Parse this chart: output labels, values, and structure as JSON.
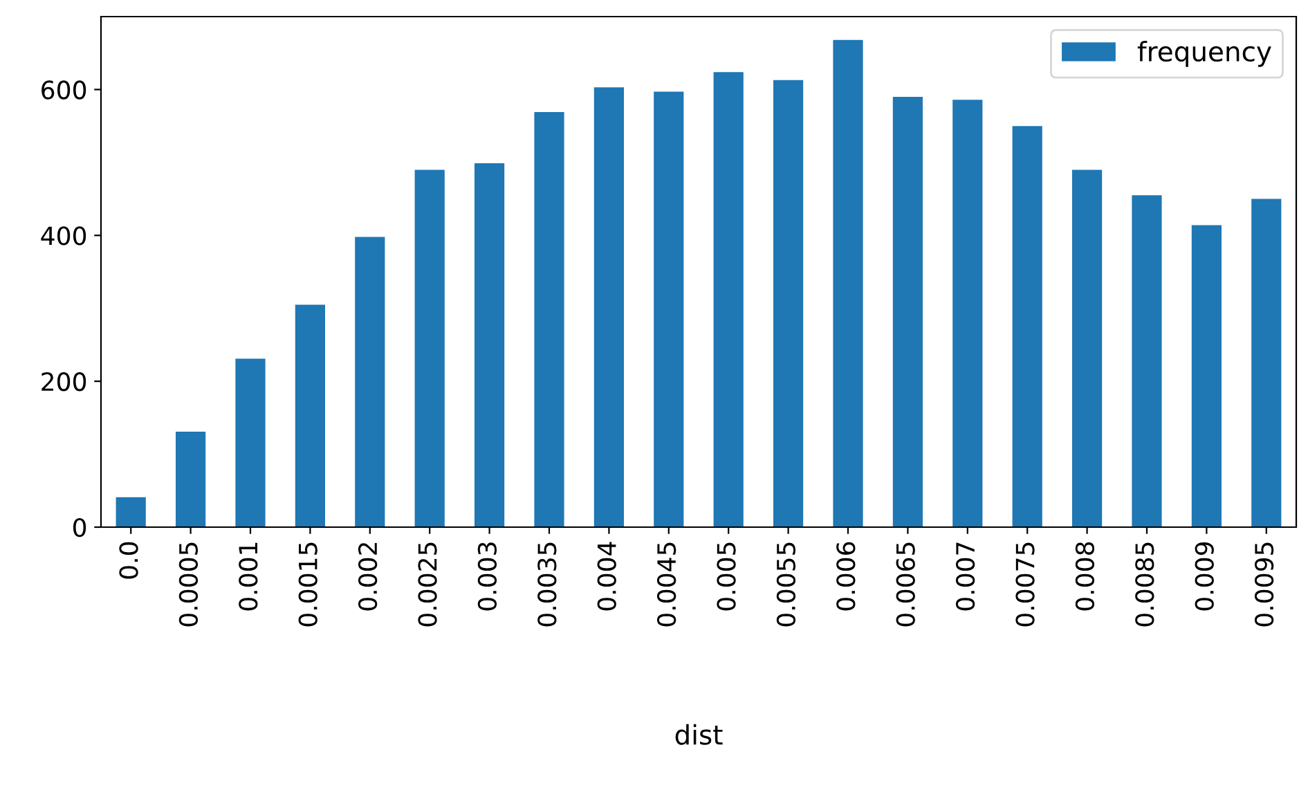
{
  "chart_data": {
    "type": "bar",
    "xlabel": "dist",
    "categories": [
      "0.0",
      "0.0005",
      "0.001",
      "0.0015",
      "0.002",
      "0.0025",
      "0.003",
      "0.0035",
      "0.004",
      "0.0045",
      "0.005",
      "0.0055",
      "0.006",
      "0.0065",
      "0.007",
      "0.0075",
      "0.008",
      "0.0085",
      "0.009",
      "0.0095"
    ],
    "series": [
      {
        "name": "frequency",
        "color": "#1f77b4",
        "values": [
          41,
          131,
          231,
          305,
          398,
          490,
          499,
          569,
          603,
          597,
          624,
          613,
          668,
          590,
          586,
          550,
          490,
          455,
          414,
          450
        ]
      }
    ],
    "ylim": [
      0,
      700
    ],
    "yticks": [
      0,
      200,
      400,
      600
    ],
    "legend": "top right",
    "grid": false
  }
}
